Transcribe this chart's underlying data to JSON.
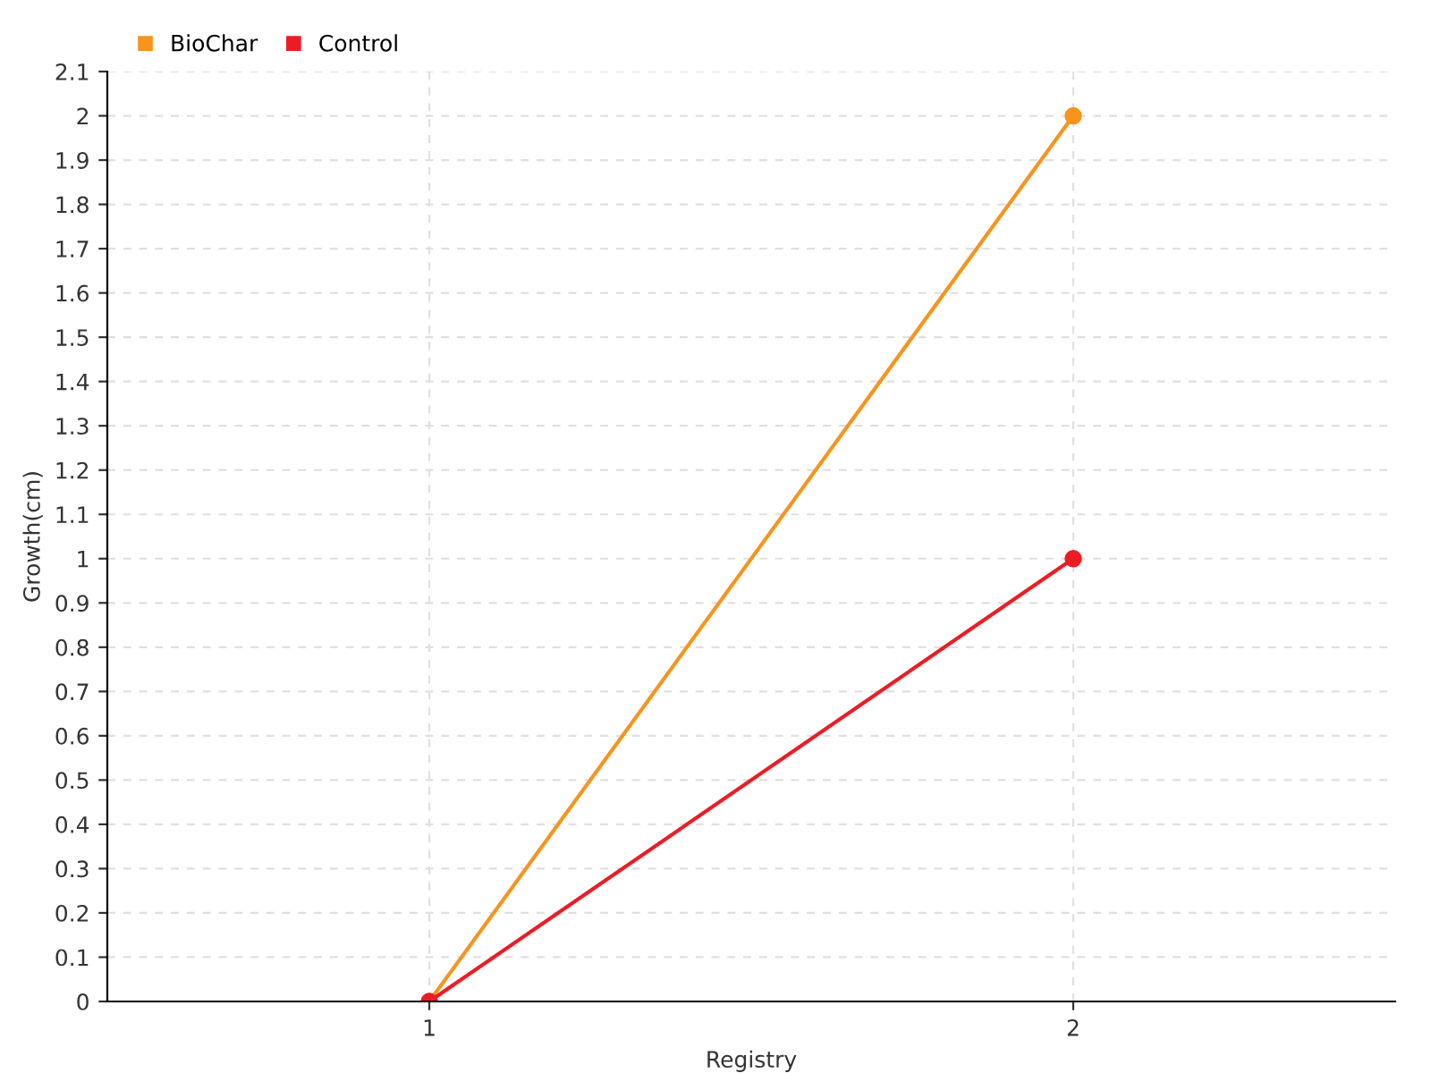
{
  "chart_data": {
    "type": "line",
    "xlabel": "Registry",
    "ylabel": "Growth(cm)",
    "x": [
      1,
      2
    ],
    "series": [
      {
        "name": "BioChar",
        "color": "#f7941d",
        "values": [
          0,
          2
        ]
      },
      {
        "name": "Control",
        "color": "#ed1c24",
        "values": [
          0,
          1
        ]
      }
    ],
    "xlim": [
      0.5,
      2.5
    ],
    "xticks": [
      1,
      2
    ],
    "ylim": [
      0,
      2.1
    ],
    "yticks": [
      0,
      0.1,
      0.2,
      0.3,
      0.4,
      0.5,
      0.6,
      0.7,
      0.8,
      0.9,
      1,
      1.1,
      1.2,
      1.3,
      1.4,
      1.5,
      1.6,
      1.7,
      1.8,
      1.9,
      2,
      2.1
    ],
    "grid": true,
    "legend": "top left",
    "marker": "circle",
    "line_style": "solid"
  }
}
